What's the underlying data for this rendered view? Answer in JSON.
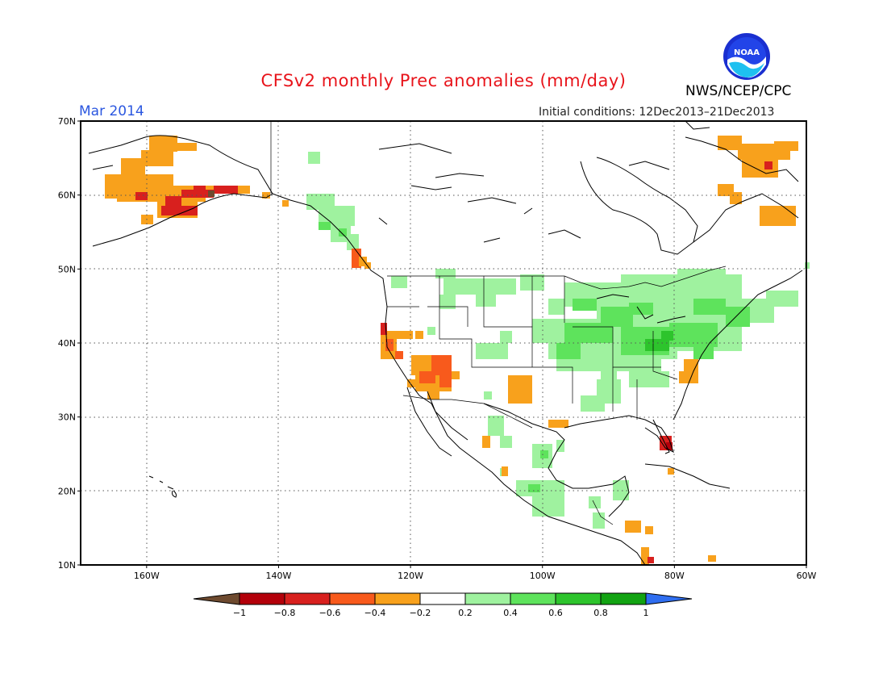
{
  "title": "CFSv2 monthly Prec anomalies (mm/day)",
  "forecast_month": "Mar 2014",
  "initial_conditions": "Initial conditions: 12Dec2013–21Dec2013",
  "agency": "NWS/NCEP/CPC",
  "logo_text": "NOAA",
  "axes": {
    "lat_ticks": [
      "70N",
      "60N",
      "50N",
      "40N",
      "30N",
      "20N",
      "10N"
    ],
    "lon_ticks": [
      "160W",
      "140W",
      "120W",
      "100W",
      "80W",
      "60W"
    ],
    "lat_range": [
      10,
      70
    ],
    "lon_range": [
      -170,
      -60
    ]
  },
  "colorbar": {
    "tick_labels": [
      "−1",
      "−0.8",
      "−0.6",
      "−0.4",
      "−0.2",
      "0.2",
      "0.4",
      "0.6",
      "0.8",
      "1"
    ],
    "colors": [
      "#6e4a2f",
      "#b3000a",
      "#d8201e",
      "#f85a1c",
      "#f8a11c",
      "#ffffff",
      "#9ff29f",
      "#5ee35c",
      "#2dc42c",
      "#12a312",
      "#2f6ef0"
    ]
  },
  "regions_dry": [
    {
      "name": "alaska-dry",
      "level": "-0.4"
    },
    {
      "name": "southwest-dry",
      "level": "-0.6"
    },
    {
      "name": "california-dry",
      "level": "-0.6"
    },
    {
      "name": "pacific-nw-coast-dry",
      "level": "-0.6"
    },
    {
      "name": "florida-dry",
      "level": "-0.8"
    },
    {
      "name": "nc-coast-dry",
      "level": "-0.4"
    },
    {
      "name": "labrador-dry",
      "level": "-0.4"
    }
  ],
  "regions_wet": [
    {
      "name": "northeast-wet",
      "level": "0.6"
    },
    {
      "name": "midwest-wet",
      "level": "0.4"
    },
    {
      "name": "northern-plains-wet",
      "level": "0.2"
    },
    {
      "name": "mexico-wet",
      "level": "0.2"
    },
    {
      "name": "bc-coast-wet",
      "level": "0.4"
    }
  ]
}
